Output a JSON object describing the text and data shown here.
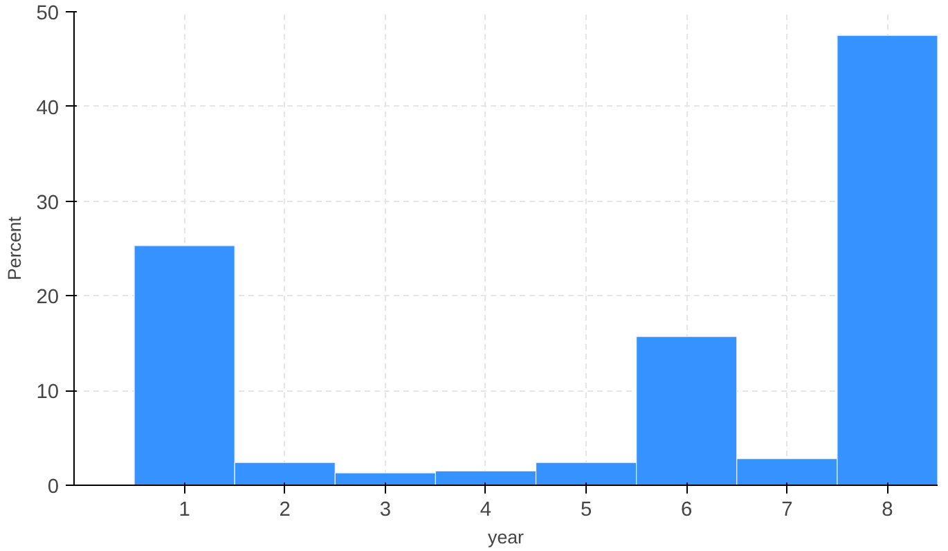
{
  "chart_data": {
    "type": "histogram",
    "xlabel": "year",
    "ylabel": "Percent",
    "bins": [
      0.5,
      1.5,
      2.5,
      3.5,
      4.5,
      5.5,
      6.5,
      7.5,
      8.5
    ],
    "values": [
      25.3,
      2.4,
      1.3,
      1.5,
      2.4,
      15.7,
      2.8,
      47.5
    ],
    "color": "#3592ff",
    "xlim": [
      -0.1,
      8.5
    ],
    "xticks": [
      1,
      2,
      3,
      4,
      5,
      6,
      7,
      8
    ],
    "ylim": [
      0,
      50
    ],
    "yticks": [
      0,
      10,
      20,
      30,
      40,
      50
    ],
    "grid": true
  }
}
